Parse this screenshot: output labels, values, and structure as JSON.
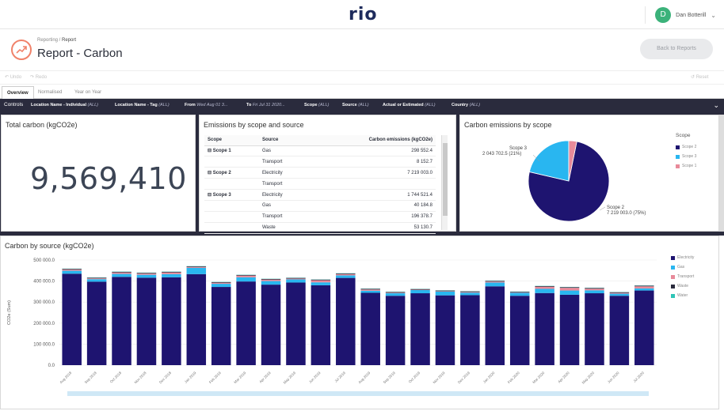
{
  "app": {
    "logo": "rio",
    "user_name": "Dan Botterill",
    "user_initial": "D"
  },
  "header": {
    "breadcrumb_root": "Reporting",
    "breadcrumb_current": "Report",
    "title": "Report - Carbon",
    "back_button": "Back to Reports"
  },
  "toolbar": {
    "undo": "Undo",
    "redo": "Redo",
    "reset": "Reset"
  },
  "tabs": [
    {
      "label": "Overview"
    },
    {
      "label": "Normalised"
    },
    {
      "label": "Year on Year"
    }
  ],
  "controls": {
    "label": "Controls",
    "filters": [
      {
        "name": "Location Name - Individual",
        "value": "(ALL)"
      },
      {
        "name": "Location Name - Tag",
        "value": "(ALL)"
      },
      {
        "name": "From",
        "value": "Wed Aug 01 3..."
      },
      {
        "name": "To",
        "value": "Fri Jul 31 2020..."
      },
      {
        "name": "Scope",
        "value": "(ALL)"
      },
      {
        "name": "Source",
        "value": "(ALL)"
      },
      {
        "name": "Actual or Estimated",
        "value": "(ALL)"
      },
      {
        "name": "Country",
        "value": "(ALL)"
      }
    ]
  },
  "total_carbon": {
    "title": "Total carbon (kgCO2e)",
    "value": "9,569,410"
  },
  "emissions_table": {
    "title": "Emissions by scope and source",
    "headers": [
      "Scope",
      "Source",
      "Carbon emissions (kgCO2e)"
    ],
    "rows": [
      {
        "scope": "Scope 1",
        "source": "Gas",
        "value": "298 552.4"
      },
      {
        "scope": "",
        "source": "Transport",
        "value": "8 152.7"
      },
      {
        "scope": "Scope 2",
        "source": "Electricity",
        "value": "7 219 003.0"
      },
      {
        "scope": "",
        "source": "Transport",
        "value": ""
      },
      {
        "scope": "Scope 3",
        "source": "Electricity",
        "value": "1 744 521.4"
      },
      {
        "scope": "",
        "source": "Gas",
        "value": "40 184.8"
      },
      {
        "scope": "",
        "source": "Transport",
        "value": "196 378.7"
      },
      {
        "scope": "",
        "source": "Waste",
        "value": "53 130.7"
      }
    ]
  },
  "colors": {
    "electricity": "#1e1470",
    "gas": "#29b6f0",
    "transport": "#e88a9a",
    "waste": "#2a2b3d",
    "water": "#2ec4b6",
    "dark": "#2a2b3d"
  },
  "chart_data": [
    {
      "type": "pie",
      "title": "Carbon emissions by scope",
      "legend_title": "Scope",
      "legend_position": "right",
      "slices": [
        {
          "name": "Scope 2",
          "value": 7219003.0,
          "label_line1": "Scope 2",
          "label_line2": "7 219 003.0 (75%)",
          "color": "#1e1470"
        },
        {
          "name": "Scope 3",
          "value": 2043702.5,
          "label_line1": "Scope 3",
          "label_line2": "2 043 702.5 (21%)",
          "color": "#29b6f0"
        },
        {
          "name": "Scope 1",
          "value": 306705.1,
          "color": "#e88a9a"
        }
      ]
    },
    {
      "type": "bar",
      "stacked": true,
      "title": "Carbon by source (kgCO2e)",
      "ylabel": "CO2e (Sum)",
      "ylim": [
        0,
        500000
      ],
      "yticks": [
        "0.0",
        "100 000.0",
        "200 000.0",
        "300 000.0",
        "400 000.0",
        "500 000.0"
      ],
      "legend_position": "right",
      "categories": [
        "Aug 2018",
        "Sep 2018",
        "Oct 2018",
        "Nov 2018",
        "Dec 2018",
        "Jan 2019",
        "Feb 2019",
        "Mar 2019",
        "Apr 2019",
        "May 2019",
        "Jun 2019",
        "Jul 2019",
        "Aug 2019",
        "Sep 2019",
        "Oct 2019",
        "Nov 2019",
        "Dec 2019",
        "Jan 2020",
        "Feb 2020",
        "Mar 2020",
        "Apr 2020",
        "May 2020",
        "Jun 2020",
        "Jul 2020"
      ],
      "series": [
        {
          "name": "Electricity",
          "values": [
            435000,
            397000,
            420000,
            416000,
            418000,
            433000,
            372000,
            398000,
            383000,
            393000,
            380000,
            415000,
            344000,
            330000,
            342000,
            332000,
            333000,
            375000,
            330000,
            343000,
            335000,
            342000,
            330000,
            355000
          ]
        },
        {
          "name": "Gas",
          "values": [
            14000,
            12000,
            14000,
            14000,
            15000,
            30000,
            15000,
            20000,
            17000,
            15000,
            14000,
            12000,
            10000,
            12000,
            15000,
            18000,
            12000,
            18000,
            14000,
            20000,
            20000,
            14000,
            10000,
            10000
          ]
        },
        {
          "name": "Transport",
          "values": [
            6000,
            4000,
            7000,
            6000,
            8000,
            4000,
            5000,
            8000,
            7000,
            4000,
            10000,
            6000,
            6000,
            3000,
            2000,
            2000,
            3000,
            5000,
            2000,
            10000,
            13000,
            8000,
            4000,
            10000
          ]
        },
        {
          "name": "Waste",
          "values": [
            3000,
            3000,
            3000,
            3000,
            3000,
            3000,
            3000,
            3000,
            3000,
            3000,
            3000,
            3000,
            3000,
            3000,
            3000,
            3000,
            3000,
            3000,
            3000,
            3000,
            3000,
            3000,
            3000,
            3000
          ]
        },
        {
          "name": "Water",
          "values": [
            1000,
            1000,
            1000,
            1000,
            1000,
            1000,
            1000,
            1000,
            1000,
            1000,
            1000,
            1000,
            1000,
            1000,
            1000,
            1000,
            1000,
            1000,
            1000,
            1000,
            1000,
            1000,
            1000,
            1000
          ]
        }
      ]
    }
  ]
}
